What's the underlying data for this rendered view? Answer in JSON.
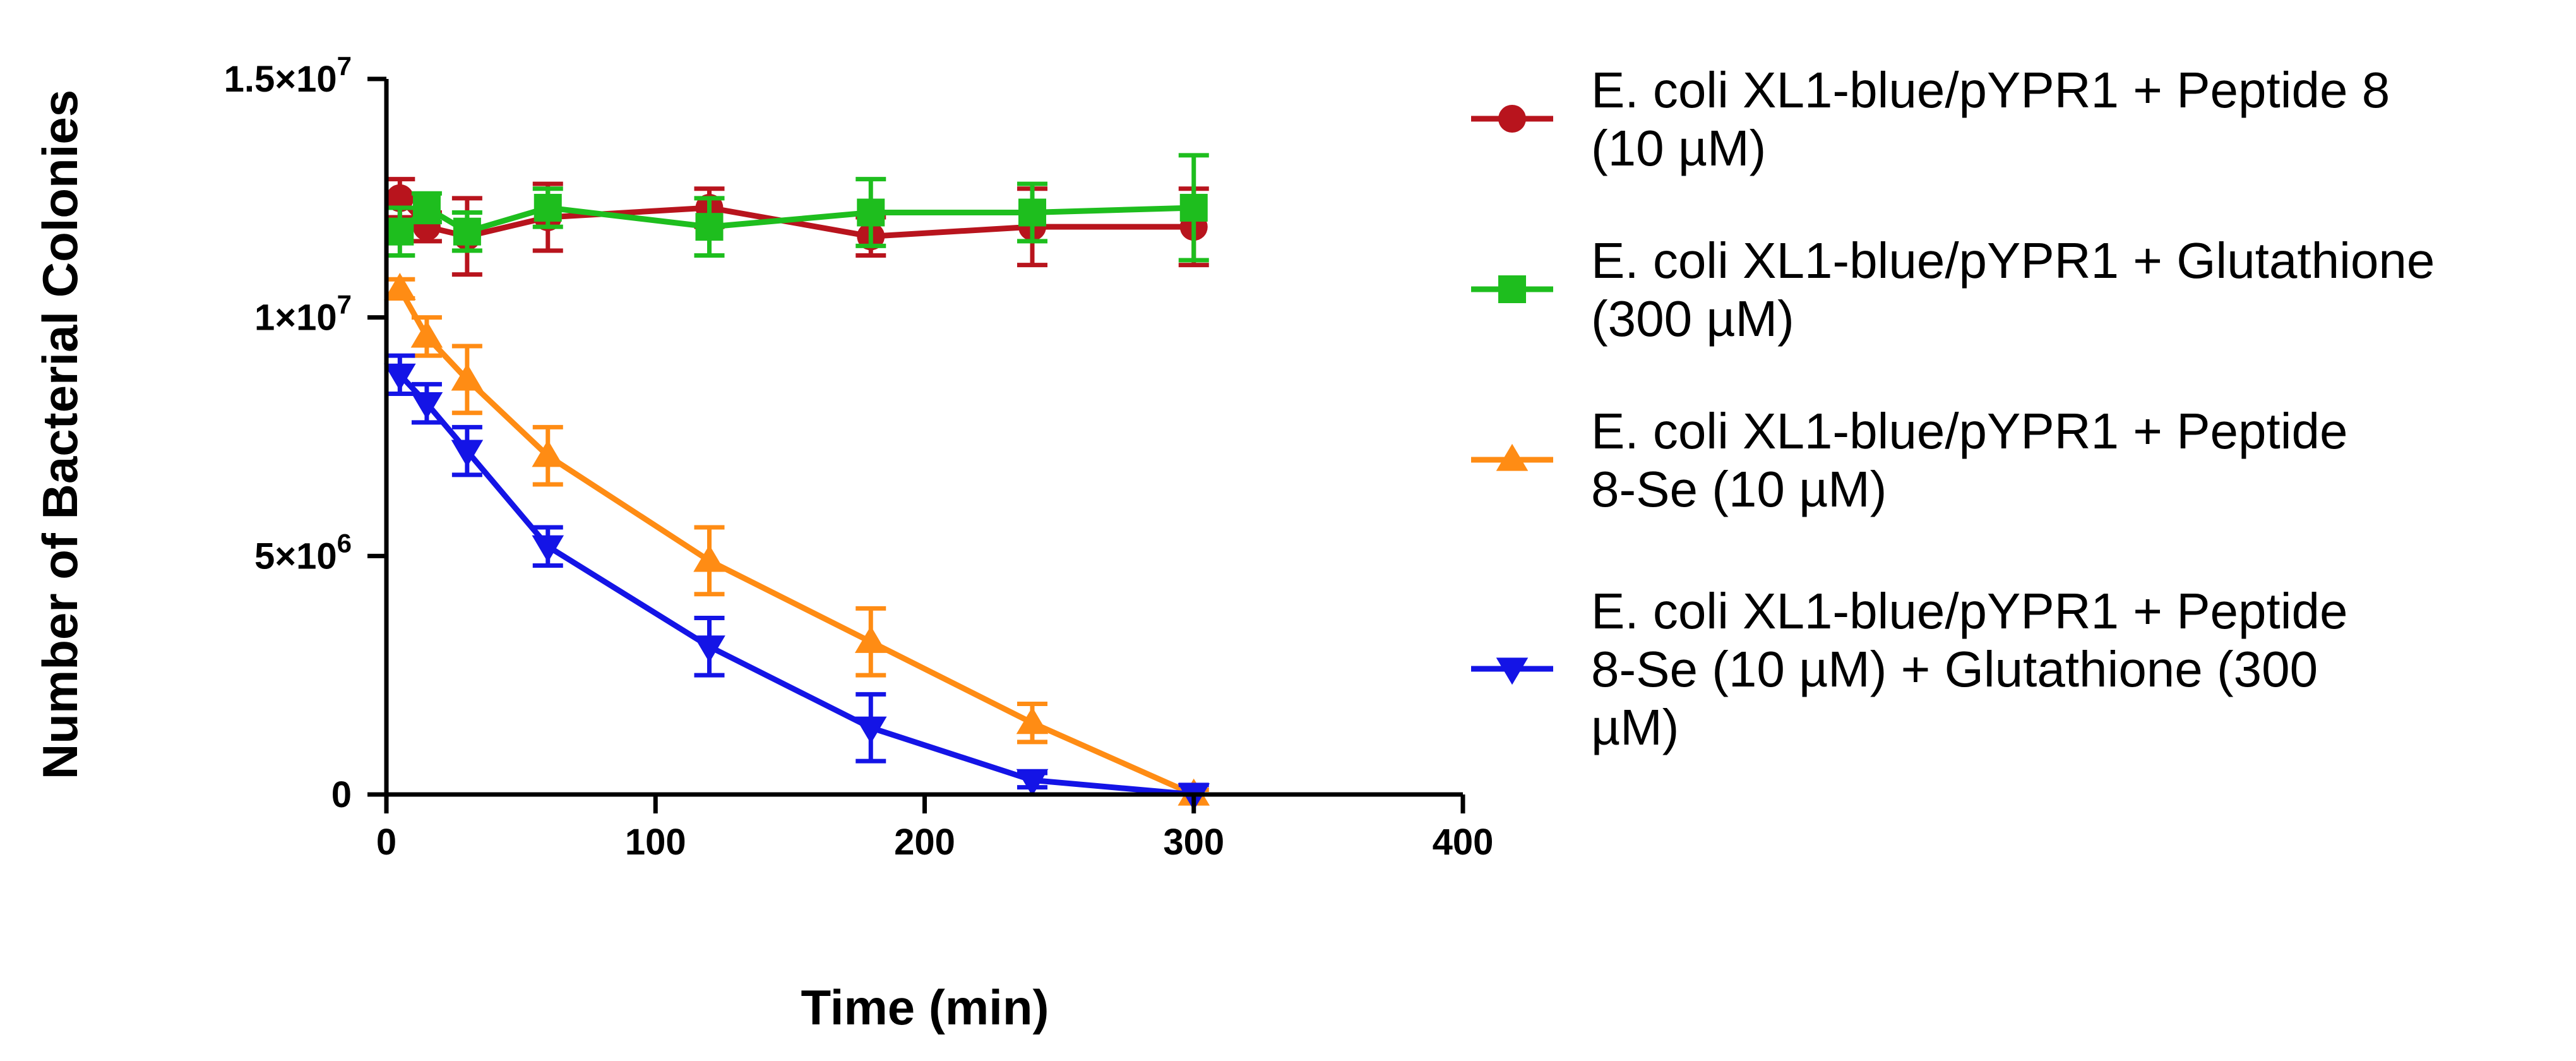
{
  "chart_data": {
    "type": "line",
    "title": "",
    "xlabel": "Time (min)",
    "ylabel": "Number of Bacterial Colonies",
    "xlim": [
      0,
      400
    ],
    "ylim": [
      0,
      15000000
    ],
    "grid": false,
    "legend_position": "right",
    "x_ticks": [
      {
        "value": 0,
        "label": "0"
      },
      {
        "value": 100,
        "label": "100"
      },
      {
        "value": 200,
        "label": "200"
      },
      {
        "value": 300,
        "label": "300"
      },
      {
        "value": 400,
        "label": "400"
      }
    ],
    "y_ticks": [
      {
        "value": 0,
        "label": "0",
        "mantissa": "0",
        "exponent": ""
      },
      {
        "value": 5000000,
        "label": "5×10^6",
        "mantissa": "5×10",
        "exponent": "6"
      },
      {
        "value": 10000000,
        "label": "1×10^7",
        "mantissa": "1×10",
        "exponent": "7"
      },
      {
        "value": 15000000,
        "label": "1.5×10^7",
        "mantissa": "1.5×10",
        "exponent": "7"
      }
    ],
    "series": [
      {
        "name": "E. coli XL1-blue/pYPR1 + Peptide 8 (10 µM)",
        "legend_lines": [
          "E. coli XL1-blue/pYPR1 + Peptide 8",
          "(10 µM)"
        ],
        "color": "#b8141d",
        "marker": "circle",
        "x": [
          5,
          15,
          30,
          60,
          120,
          180,
          240,
          300
        ],
        "values": [
          12500000,
          11900000,
          11700000,
          12100000,
          12300000,
          11700000,
          11900000,
          11900000
        ],
        "errors": [
          400000,
          300000,
          800000,
          700000,
          400000,
          400000,
          800000,
          800000
        ]
      },
      {
        "name": "E. coli XL1-blue/pYPR1 + Glutathione (300 µM)",
        "legend_lines": [
          "E. coli XL1-blue/pYPR1 + Glutathione",
          "(300 µM)"
        ],
        "color": "#1ebe1e",
        "marker": "square",
        "x": [
          5,
          15,
          30,
          60,
          120,
          180,
          240,
          300
        ],
        "values": [
          11800000,
          12300000,
          11800000,
          12300000,
          11900000,
          12200000,
          12200000,
          12300000
        ],
        "errors": [
          500000,
          300000,
          400000,
          400000,
          600000,
          700000,
          600000,
          1100000
        ]
      },
      {
        "name": "E. coli XL1-blue/pYPR1 + Peptide 8-Se (10 µM)",
        "legend_lines": [
          "E. coli XL1-blue/pYPR1 + Peptide",
          "8-Se (10 µM)"
        ],
        "color": "#ff8c14",
        "marker": "triangle-up",
        "x": [
          5,
          15,
          30,
          60,
          120,
          180,
          240,
          300
        ],
        "values": [
          10600000,
          9600000,
          8700000,
          7100000,
          4900000,
          3200000,
          1500000,
          0
        ],
        "errors": [
          200000,
          400000,
          700000,
          600000,
          700000,
          700000,
          400000,
          100000
        ]
      },
      {
        "name": "E. coli XL1-blue/pYPR1 + Peptide 8-Se (10 µM) + Glutathione (300 µM)",
        "legend_lines": [
          "E. coli XL1-blue/pYPR1 + Peptide",
          "8-Se (10 µM) + Glutathione (300",
          "µM)"
        ],
        "color": "#1414e6",
        "marker": "triangle-down",
        "x": [
          5,
          15,
          30,
          60,
          120,
          180,
          240,
          300
        ],
        "values": [
          8800000,
          8200000,
          7200000,
          5200000,
          3100000,
          1400000,
          300000,
          0
        ],
        "errors": [
          400000,
          400000,
          500000,
          400000,
          600000,
          700000,
          150000,
          200000
        ]
      }
    ]
  }
}
